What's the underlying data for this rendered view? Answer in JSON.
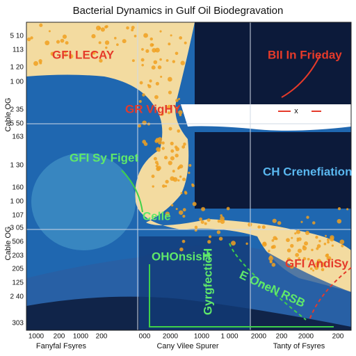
{
  "title": "Bacterial Dynamics in Gulf Oil Biodegravation",
  "labels": [
    "GFI LECAY",
    "BII In Frieday",
    "GR VigHY",
    "GFI Sy Figet",
    "CH Crenefiation",
    "Celle",
    "OHOnsisH",
    "E OneN RSB",
    "GFI AndiSy"
  ],
  "vertical_label": "GyrgfecticH",
  "marker": "x",
  "y_axis_titles": [
    "Cable OG",
    "Cable OG"
  ],
  "y_ticks": [
    "5 10",
    "113",
    "1 20",
    "1 00",
    "2 35",
    "5 50",
    "163",
    "1 30",
    "160",
    "1 00",
    "107",
    "3 05",
    "506",
    "203",
    "205",
    "125",
    "2 40",
    "303"
  ],
  "x_ticks": [
    "1000",
    "200",
    "1000",
    "200",
    "000",
    "2000",
    "1000",
    "1 000",
    "2000",
    "200",
    "2000",
    "200"
  ],
  "x_axis_titles": [
    "Fanyfal Fsyres",
    "Cany Vilee Spurer",
    "Tanty of Fsyres"
  ]
}
